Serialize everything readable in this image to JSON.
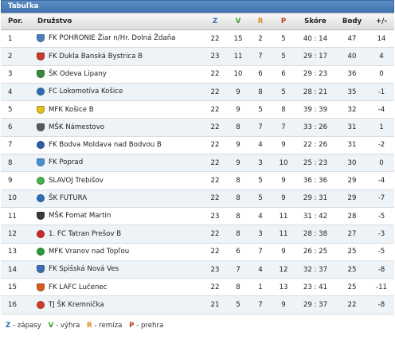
{
  "title": "Tabuľka",
  "headers": {
    "pos": "Por.",
    "team": "Družstvo",
    "z": "Z",
    "v": "V",
    "r": "R",
    "p": "P",
    "score": "Skóre",
    "points": "Body",
    "diff": "+/-"
  },
  "rows": [
    {
      "pos": "1",
      "team": "FK POHRONIE Žiar n/Hr. Dolná Ždaňa",
      "z": "22",
      "v": "15",
      "r": "2",
      "p": "5",
      "score": "40 : 14",
      "points": "47",
      "diff": "14",
      "logo_color": "#4a7fc0",
      "logo_shape": "shield"
    },
    {
      "pos": "2",
      "team": "FK Dukla Banská Bystrica B",
      "z": "23",
      "v": "11",
      "r": "7",
      "p": "5",
      "score": "29 : 17",
      "points": "40",
      "diff": "4",
      "logo_color": "#c8382b",
      "logo_shape": "shield"
    },
    {
      "pos": "3",
      "team": "ŠK Odeva Lipany",
      "z": "22",
      "v": "10",
      "r": "6",
      "p": "6",
      "score": "29 : 23",
      "points": "36",
      "diff": "0",
      "logo_color": "#3a8a3c",
      "logo_shape": "shield"
    },
    {
      "pos": "4",
      "team": "FC Lokomotíva Košice",
      "z": "22",
      "v": "9",
      "r": "8",
      "p": "5",
      "score": "28 : 21",
      "points": "35",
      "diff": "-1",
      "logo_color": "#2f6db5",
      "logo_shape": "round"
    },
    {
      "pos": "5",
      "team": "MFK Košice B",
      "z": "22",
      "v": "9",
      "r": "5",
      "p": "8",
      "score": "39 : 39",
      "points": "32",
      "diff": "-4",
      "logo_color": "#e0c020",
      "logo_shape": "shield"
    },
    {
      "pos": "6",
      "team": "MŠK Námestovo",
      "z": "22",
      "v": "8",
      "r": "7",
      "p": "7",
      "score": "33 : 26",
      "points": "31",
      "diff": "1",
      "logo_color": "#5a5a5a",
      "logo_shape": "shield"
    },
    {
      "pos": "7",
      "team": "FK Bodva Moldava nad Bodvou B",
      "z": "22",
      "v": "9",
      "r": "4",
      "p": "9",
      "score": "22 : 26",
      "points": "31",
      "diff": "-2",
      "logo_color": "#2f5fa8",
      "logo_shape": "round"
    },
    {
      "pos": "8",
      "team": "FK Poprad",
      "z": "22",
      "v": "9",
      "r": "3",
      "p": "10",
      "score": "25 : 23",
      "points": "30",
      "diff": "0",
      "logo_color": "#4a8fd0",
      "logo_shape": "shield"
    },
    {
      "pos": "9",
      "team": "SLAVOJ Trebišov",
      "z": "22",
      "v": "8",
      "r": "5",
      "p": "9",
      "score": "36 : 36",
      "points": "29",
      "diff": "-4",
      "logo_color": "#4bb04b",
      "logo_shape": "round"
    },
    {
      "pos": "10",
      "team": "ŠK FUTURA",
      "z": "22",
      "v": "8",
      "r": "5",
      "p": "9",
      "score": "29 : 31",
      "points": "29",
      "diff": "-7",
      "logo_color": "#2f6db5",
      "logo_shape": "round"
    },
    {
      "pos": "11",
      "team": "MŠK Fomat Martin",
      "z": "23",
      "v": "8",
      "r": "4",
      "p": "11",
      "score": "31 : 42",
      "points": "28",
      "diff": "-5",
      "logo_color": "#3a3a3a",
      "logo_shape": "shield"
    },
    {
      "pos": "12",
      "team": "1. FC Tatran Prešov B",
      "z": "22",
      "v": "8",
      "r": "3",
      "p": "11",
      "score": "28 : 38",
      "points": "27",
      "diff": "-3",
      "logo_color": "#cc2a2a",
      "logo_shape": "round"
    },
    {
      "pos": "13",
      "team": "MFK Vranov nad Topľou",
      "z": "22",
      "v": "6",
      "r": "7",
      "p": "9",
      "score": "26 : 25",
      "points": "25",
      "diff": "-5",
      "logo_color": "#2a9a3a",
      "logo_shape": "round"
    },
    {
      "pos": "14",
      "team": "FK Spišská Nová Ves",
      "z": "23",
      "v": "7",
      "r": "4",
      "p": "12",
      "score": "32 : 37",
      "points": "25",
      "diff": "-8",
      "logo_color": "#3b6fb5",
      "logo_shape": "shield"
    },
    {
      "pos": "15",
      "team": "FK LAFC Lučenec",
      "z": "22",
      "v": "8",
      "r": "1",
      "p": "13",
      "score": "23 : 41",
      "points": "25",
      "diff": "-11",
      "logo_color": "#d85a1c",
      "logo_shape": "shield"
    },
    {
      "pos": "16",
      "team": "TJ ŠK Kremnička",
      "z": "21",
      "v": "5",
      "r": "7",
      "p": "9",
      "score": "29 : 37",
      "points": "22",
      "diff": "-8",
      "logo_color": "#d43a2a",
      "logo_shape": "round"
    }
  ],
  "legend": {
    "z_key": "Z",
    "z_text": " - zápasy",
    "v_key": "V",
    "v_text": " - výhra",
    "r_key": "R",
    "r_text": " - remíza",
    "p_key": "P",
    "p_text": " - prehra"
  }
}
